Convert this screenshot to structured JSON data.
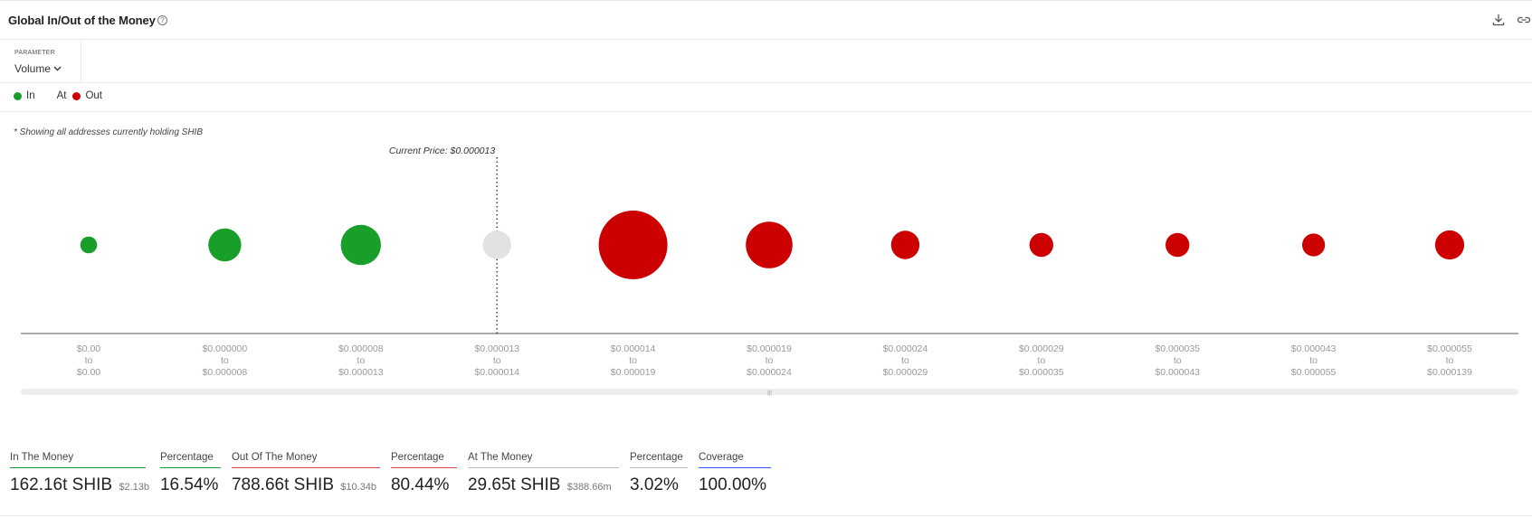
{
  "header": {
    "title": "Global In/Out of the Money",
    "help_glyph": "?",
    "icons": [
      "help-icon",
      "download-icon",
      "link-icon"
    ]
  },
  "parameter": {
    "label": "PARAMETER",
    "selected": "Volume"
  },
  "legend": [
    {
      "label": "In",
      "color": "#1a9e2a",
      "dot": true
    },
    {
      "label": "At",
      "color": "#cccccc",
      "dot": false
    },
    {
      "label": "Out",
      "color": "#cc0000",
      "dot": true
    }
  ],
  "note": "* Showing all addresses currently holding SHIB",
  "colors": {
    "in": "#1a9e2a",
    "at": "#e2e2e2",
    "out": "#cc0000",
    "percentage_underline": "#bbbbbb",
    "coverage": "#3355ff"
  },
  "chart_data": {
    "type": "scatter",
    "size_encoding": "relative volume",
    "annotation": "Current Price: $0.000013",
    "current_price_index": 3,
    "categories": [
      {
        "from": "$0.00",
        "to": "$0.00"
      },
      {
        "from": "$0.000000",
        "to": "$0.000008"
      },
      {
        "from": "$0.000008",
        "to": "$0.000013"
      },
      {
        "from": "$0.000013",
        "to": "$0.000014"
      },
      {
        "from": "$0.000014",
        "to": "$0.000019"
      },
      {
        "from": "$0.000019",
        "to": "$0.000024"
      },
      {
        "from": "$0.000024",
        "to": "$0.000029"
      },
      {
        "from": "$0.000029",
        "to": "$0.000035"
      },
      {
        "from": "$0.000035",
        "to": "$0.000043"
      },
      {
        "from": "$0.000043",
        "to": "$0.000055"
      },
      {
        "from": "$0.000055",
        "to": "$0.000139"
      }
    ],
    "to_word": "to",
    "status": [
      "in",
      "in",
      "in",
      "at",
      "out",
      "out",
      "out",
      "out",
      "out",
      "out",
      "out"
    ],
    "relative_volume": [
      0.06,
      0.23,
      0.34,
      0.17,
      1.0,
      0.46,
      0.17,
      0.12,
      0.12,
      0.11,
      0.18
    ]
  },
  "stats": [
    {
      "label": "In The Money",
      "value": "162.16t SHIB",
      "sub": "$2.13b",
      "color": "#1a9e2a"
    },
    {
      "label": "Percentage",
      "value": "16.54%",
      "sub": "",
      "color": "#1a9e2a"
    },
    {
      "label": "Out Of The Money",
      "value": "788.66t SHIB",
      "sub": "$10.34b",
      "color": "#e04444"
    },
    {
      "label": "Percentage",
      "value": "80.44%",
      "sub": "",
      "color": "#e04444"
    },
    {
      "label": "At The Money",
      "value": "29.65t SHIB",
      "sub": "$388.66m",
      "color": "#bbbbbb"
    },
    {
      "label": "Percentage",
      "value": "3.02%",
      "sub": "",
      "color": "#bbbbbb"
    },
    {
      "label": "Coverage",
      "value": "100.00%",
      "sub": "",
      "color": "#3355ff"
    }
  ]
}
